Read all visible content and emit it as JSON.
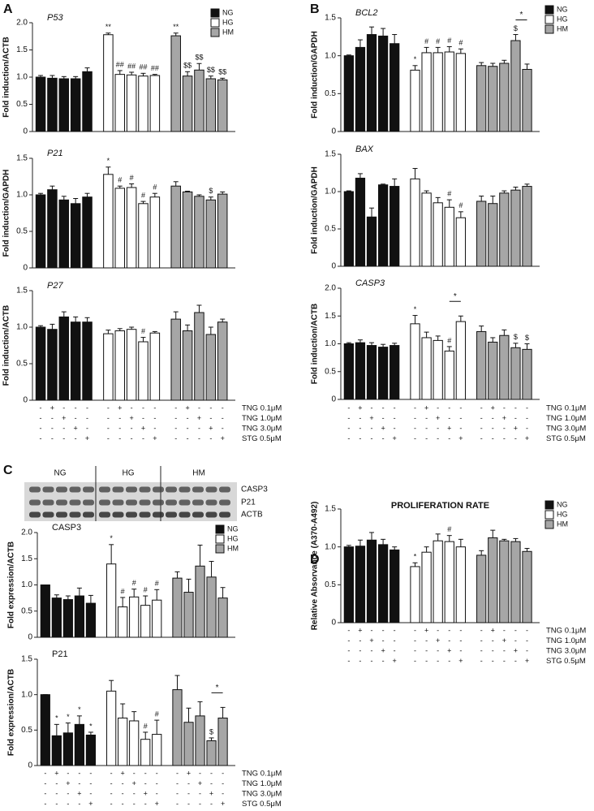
{
  "panels": [
    "A",
    "B",
    "C",
    "D"
  ],
  "blot": {
    "groups": [
      "NG",
      "HG",
      "HM"
    ],
    "bands": [
      "CASP3",
      "P21",
      "ACTB"
    ]
  },
  "treatments": {
    "rows": [
      {
        "label": "TNG 0.1μM",
        "marks": [
          "-",
          "+",
          "-",
          "-",
          "-",
          "-",
          "+",
          "-",
          "-",
          "-",
          "-",
          "+",
          "-",
          "-",
          "-"
        ]
      },
      {
        "label": "TNG 1.0μM",
        "marks": [
          "-",
          "-",
          "+",
          "-",
          "-",
          "-",
          "-",
          "+",
          "-",
          "-",
          "-",
          "-",
          "+",
          "-",
          "-"
        ]
      },
      {
        "label": "TNG 3.0μM",
        "marks": [
          "-",
          "-",
          "-",
          "+",
          "-",
          "-",
          "-",
          "-",
          "+",
          "-",
          "-",
          "-",
          "-",
          "+",
          "-"
        ]
      },
      {
        "label": "STG 0.5μM",
        "marks": [
          "-",
          "-",
          "-",
          "-",
          "+",
          "-",
          "-",
          "-",
          "-",
          "+",
          "-",
          "-",
          "-",
          "-",
          "+"
        ]
      }
    ]
  },
  "chart_data": [
    {
      "type": "bar",
      "title": "P53",
      "title_style": "italic",
      "ylabel": "Fold induction/ACTB",
      "ylim": [
        0,
        2
      ],
      "yticks": [
        0,
        0.5,
        {
          "value": 1,
          "label": "1.0"
        },
        1.5,
        {
          "value": 2,
          "label": "2.0"
        }
      ],
      "legend": "top-right",
      "series": [
        {
          "name": "NG",
          "color": "#111111",
          "values": [
            1.0,
            0.98,
            0.97,
            0.97,
            1.1
          ],
          "errors": [
            0.03,
            0.05,
            0.04,
            0.04,
            0.07
          ]
        },
        {
          "name": "HG",
          "color": "#ffffff",
          "values": [
            1.78,
            1.05,
            1.04,
            1.02,
            1.03
          ],
          "errors": [
            0.03,
            0.07,
            0.05,
            0.05,
            0.02
          ],
          "annotations": [
            "**",
            "##",
            "##",
            "##",
            "##"
          ]
        },
        {
          "name": "HM",
          "color": "#a6a6a6",
          "values": [
            1.76,
            1.02,
            1.13,
            0.97,
            0.95
          ],
          "errors": [
            0.05,
            0.08,
            0.12,
            0.05,
            0.03
          ],
          "annotations": [
            "**",
            "$$",
            "$$",
            "$$",
            "$$"
          ]
        }
      ]
    },
    {
      "type": "bar",
      "title": "P21",
      "title_style": "italic",
      "ylabel": "Fold induction/GAPDH",
      "ylim": [
        0,
        1.5
      ],
      "yticks": [
        0,
        0.5,
        {
          "value": 1,
          "label": "1.0"
        },
        1.5
      ],
      "series": [
        {
          "name": "NG",
          "color": "#111111",
          "values": [
            1.0,
            1.07,
            0.93,
            0.88,
            0.97
          ],
          "errors": [
            0.02,
            0.05,
            0.05,
            0.07,
            0.05
          ]
        },
        {
          "name": "HG",
          "color": "#ffffff",
          "values": [
            1.28,
            1.09,
            1.1,
            0.88,
            0.97
          ],
          "errors": [
            0.1,
            0.03,
            0.05,
            0.03,
            0.05
          ],
          "annotations": [
            "*",
            "#",
            "#",
            "#",
            "#"
          ]
        },
        {
          "name": "HM",
          "color": "#a6a6a6",
          "values": [
            1.12,
            1.04,
            0.98,
            0.93,
            1.01
          ],
          "errors": [
            0.06,
            0.01,
            0.02,
            0.04,
            0.03
          ],
          "annotations": [
            null,
            null,
            null,
            "$",
            null
          ]
        }
      ]
    },
    {
      "type": "bar",
      "title": "P27",
      "title_style": "italic",
      "ylabel": "Fold induction/ACTB",
      "ylim": [
        0,
        1.5
      ],
      "yticks": [
        0,
        0.5,
        {
          "value": 1,
          "label": "1.0"
        },
        1.5
      ],
      "treatment_table": true,
      "series": [
        {
          "name": "NG",
          "color": "#111111",
          "values": [
            1.0,
            0.97,
            1.14,
            1.07,
            1.07
          ],
          "errors": [
            0.02,
            0.07,
            0.07,
            0.07,
            0.06
          ]
        },
        {
          "name": "HG",
          "color": "#ffffff",
          "values": [
            0.91,
            0.95,
            0.97,
            0.8,
            0.92
          ],
          "errors": [
            0.05,
            0.03,
            0.03,
            0.06,
            0.02
          ],
          "annotations": [
            null,
            null,
            null,
            "#",
            null
          ]
        },
        {
          "name": "HM",
          "color": "#a6a6a6",
          "values": [
            1.11,
            0.95,
            1.2,
            0.9,
            1.07
          ],
          "errors": [
            0.1,
            0.08,
            0.1,
            0.1,
            0.04
          ]
        }
      ]
    },
    {
      "type": "bar",
      "title": "BCL2",
      "title_style": "italic",
      "ylabel": "Fold induction/GAPDH",
      "ylim": [
        0,
        1.5
      ],
      "yticks": [
        0,
        0.5,
        {
          "value": 1,
          "label": "1.0"
        },
        1.5
      ],
      "legend": "top-right",
      "series": [
        {
          "name": "NG",
          "color": "#111111",
          "values": [
            1.0,
            1.11,
            1.28,
            1.26,
            1.16
          ],
          "errors": [
            0.01,
            0.1,
            0.1,
            0.1,
            0.12
          ]
        },
        {
          "name": "HG",
          "color": "#ffffff",
          "values": [
            0.81,
            1.04,
            1.04,
            1.05,
            1.03
          ],
          "errors": [
            0.06,
            0.07,
            0.07,
            0.07,
            0.06
          ],
          "annotations": [
            "*",
            "#",
            "#",
            "#",
            "#"
          ]
        },
        {
          "name": "HM",
          "color": "#a6a6a6",
          "values": [
            0.87,
            0.86,
            0.9,
            1.2,
            0.82
          ],
          "errors": [
            0.04,
            0.04,
            0.04,
            0.08,
            0.07
          ],
          "annotations": [
            null,
            null,
            null,
            "$",
            null
          ],
          "brackets": [
            null,
            null,
            null,
            "*",
            null
          ]
        }
      ]
    },
    {
      "type": "bar",
      "title": "BAX",
      "title_style": "italic",
      "ylabel": "Fold induction/GAPDH",
      "ylim": [
        0,
        1.5
      ],
      "yticks": [
        0,
        0.5,
        {
          "value": 1,
          "label": "1.0"
        },
        1.5
      ],
      "series": [
        {
          "name": "NG",
          "color": "#111111",
          "values": [
            1.0,
            1.18,
            0.66,
            1.09,
            1.07
          ],
          "errors": [
            0.01,
            0.06,
            0.12,
            0.01,
            0.1
          ]
        },
        {
          "name": "HG",
          "color": "#ffffff",
          "values": [
            1.17,
            0.98,
            0.85,
            0.79,
            0.65
          ],
          "errors": [
            0.14,
            0.03,
            0.07,
            0.1,
            0.08
          ],
          "annotations": [
            null,
            null,
            null,
            "#",
            "#"
          ]
        },
        {
          "name": "HM",
          "color": "#a6a6a6",
          "values": [
            0.87,
            0.84,
            0.98,
            1.02,
            1.07
          ],
          "errors": [
            0.07,
            0.1,
            0.03,
            0.04,
            0.03
          ]
        }
      ]
    },
    {
      "type": "bar",
      "title": "CASP3",
      "title_style": "italic",
      "ylabel": "Fold induction/ACTB",
      "ylim": [
        0,
        2
      ],
      "yticks": [
        0,
        0.5,
        {
          "value": 1,
          "label": "1.0"
        },
        1.5,
        {
          "value": 2,
          "label": "2.0"
        }
      ],
      "treatment_table": true,
      "series": [
        {
          "name": "NG",
          "color": "#111111",
          "values": [
            1.0,
            1.02,
            0.97,
            0.94,
            0.97
          ],
          "errors": [
            0.02,
            0.05,
            0.05,
            0.05,
            0.04
          ]
        },
        {
          "name": "HG",
          "color": "#ffffff",
          "values": [
            1.36,
            1.11,
            1.06,
            0.87,
            1.4
          ],
          "errors": [
            0.15,
            0.1,
            0.08,
            0.08,
            0.1
          ],
          "annotations": [
            "*",
            null,
            null,
            "#",
            null
          ],
          "brackets": [
            null,
            null,
            null,
            "*",
            null
          ]
        },
        {
          "name": "HM",
          "color": "#a6a6a6",
          "values": [
            1.22,
            1.03,
            1.15,
            0.93,
            0.9
          ],
          "errors": [
            0.1,
            0.08,
            0.1,
            0.08,
            0.1
          ],
          "annotations": [
            null,
            null,
            null,
            "$",
            "$"
          ]
        }
      ]
    },
    {
      "type": "bar",
      "title": "CASP3",
      "title_style": "normal",
      "ylabel": "Fold expression/ACTB",
      "ylim": [
        0,
        2
      ],
      "yticks": [
        0,
        0.5,
        {
          "value": 1,
          "label": "1.0"
        },
        1.5,
        {
          "value": 2,
          "label": "2.0"
        }
      ],
      "legend": "top-right",
      "series": [
        {
          "name": "NG",
          "color": "#111111",
          "values": [
            1.0,
            0.75,
            0.72,
            0.79,
            0.65
          ],
          "errors": [
            0,
            0.06,
            0.07,
            0.15,
            0.15
          ]
        },
        {
          "name": "HG",
          "color": "#ffffff",
          "values": [
            1.4,
            0.58,
            0.77,
            0.61,
            0.71
          ],
          "errors": [
            0.37,
            0.18,
            0.15,
            0.18,
            0.2
          ],
          "annotations": [
            "*",
            "#",
            "#",
            "#",
            "#"
          ]
        },
        {
          "name": "HM",
          "color": "#a6a6a6",
          "values": [
            1.13,
            0.86,
            1.36,
            1.15,
            0.75
          ],
          "errors": [
            0.12,
            0.25,
            0.4,
            0.3,
            0.2
          ]
        }
      ]
    },
    {
      "type": "bar",
      "title": "P21",
      "title_style": "normal",
      "ylabel": "Fold expression/ACTB",
      "ylim": [
        0,
        1.5
      ],
      "yticks": [
        0,
        0.5,
        {
          "value": 1,
          "label": "1.0"
        },
        1.5
      ],
      "treatment_table": true,
      "series": [
        {
          "name": "NG",
          "color": "#111111",
          "values": [
            1.0,
            0.42,
            0.46,
            0.58,
            0.43
          ],
          "errors": [
            0,
            0.16,
            0.14,
            0.12,
            0.04
          ],
          "annotations": [
            null,
            "*",
            "*",
            "*",
            "*"
          ]
        },
        {
          "name": "HG",
          "color": "#ffffff",
          "values": [
            1.05,
            0.67,
            0.63,
            0.37,
            0.44
          ],
          "errors": [
            0.15,
            0.2,
            0.13,
            0.1,
            0.2
          ],
          "annotations": [
            null,
            null,
            null,
            "#",
            "#"
          ]
        },
        {
          "name": "HM",
          "color": "#a6a6a6",
          "values": [
            1.07,
            0.61,
            0.7,
            0.35,
            0.67
          ],
          "errors": [
            0.2,
            0.2,
            0.2,
            0.04,
            0.15
          ],
          "annotations": [
            null,
            null,
            null,
            "$",
            null
          ],
          "brackets": [
            null,
            null,
            null,
            "*",
            null
          ]
        }
      ]
    },
    {
      "type": "bar",
      "title": "PROLIFERATION RATE",
      "title_style": "bold",
      "ylabel": "Relative Absorvance (A370-A492)",
      "ylim": [
        0,
        1.5
      ],
      "yticks": [
        0,
        0.5,
        {
          "value": 1,
          "label": "1.0"
        },
        1.5
      ],
      "legend": "top-right",
      "treatment_table": true,
      "series": [
        {
          "name": "NG",
          "color": "#111111",
          "values": [
            1.0,
            1.01,
            1.09,
            1.03,
            0.96
          ],
          "errors": [
            0.02,
            0.08,
            0.1,
            0.07,
            0.04
          ]
        },
        {
          "name": "HG",
          "color": "#ffffff",
          "values": [
            0.74,
            0.93,
            1.08,
            1.07,
            1.0
          ],
          "errors": [
            0.05,
            0.07,
            0.09,
            0.08,
            0.1
          ],
          "annotations": [
            "*",
            null,
            null,
            "#",
            null
          ]
        },
        {
          "name": "HM",
          "color": "#a6a6a6",
          "values": [
            0.89,
            1.12,
            1.08,
            1.07,
            0.94
          ],
          "errors": [
            0.06,
            0.1,
            0.02,
            0.04,
            0.04
          ]
        }
      ]
    }
  ]
}
